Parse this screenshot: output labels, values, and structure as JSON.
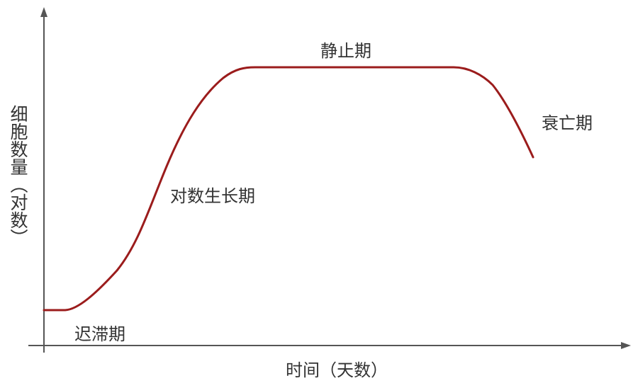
{
  "diagram": {
    "y_axis_label": "细胞数量（对数）",
    "x_axis_label": "时间（天数）",
    "phases": [
      {
        "label": "迟滞期"
      },
      {
        "label": "对数生长期"
      },
      {
        "label": "静止期"
      },
      {
        "label": "衰亡期"
      }
    ],
    "colors": {
      "curve": "#9b1c1c",
      "axis": "#555555",
      "text": "#333333"
    }
  }
}
